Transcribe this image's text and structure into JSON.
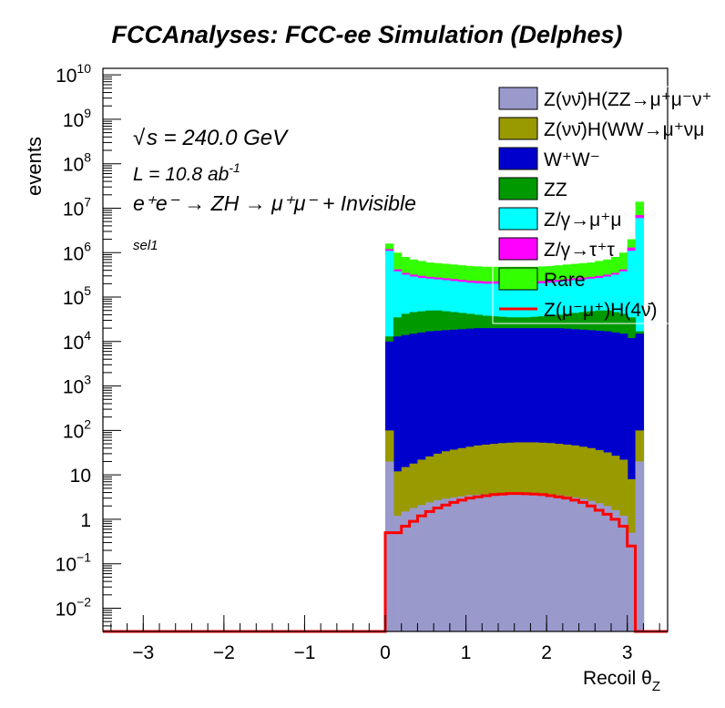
{
  "chart_data": {
    "type": "histogram-stacked",
    "title": "FCCAnalyses: FCC-ee Simulation (Delphes)",
    "xlabel_main": "Recoil θ",
    "xlabel_sub": "Z",
    "ylabel": "events",
    "xlim": [
      -3.5,
      3.5
    ],
    "ylog": true,
    "ylim": [
      0.003,
      14000000000
    ],
    "x_ticks": [
      {
        "v": -3,
        "label": "−3"
      },
      {
        "v": -2,
        "label": "−2"
      },
      {
        "v": -1,
        "label": "−1"
      },
      {
        "v": 0,
        "label": "0"
      },
      {
        "v": 1,
        "label": "1"
      },
      {
        "v": 2,
        "label": "2"
      },
      {
        "v": 3,
        "label": "3"
      }
    ],
    "y_ticks": [
      {
        "v": 0.01,
        "base": "10",
        "exp": "−2"
      },
      {
        "v": 0.1,
        "base": "10",
        "exp": "−1"
      },
      {
        "v": 1,
        "base": "1",
        "exp": ""
      },
      {
        "v": 10,
        "base": "10",
        "exp": ""
      },
      {
        "v": 100,
        "base": "10",
        "exp": "2"
      },
      {
        "v": 1000,
        "base": "10",
        "exp": "3"
      },
      {
        "v": 10000,
        "base": "10",
        "exp": "4"
      },
      {
        "v": 100000,
        "base": "10",
        "exp": "5"
      },
      {
        "v": 1000000,
        "base": "10",
        "exp": "6"
      },
      {
        "v": 10000000,
        "base": "10",
        "exp": "7"
      },
      {
        "v": 100000000,
        "base": "10",
        "exp": "8"
      },
      {
        "v": 1000000000,
        "base": "10",
        "exp": "9"
      },
      {
        "v": 10000000000,
        "base": "10",
        "exp": "10"
      }
    ],
    "bins": {
      "start": 0,
      "end": 3.2,
      "count": 32
    },
    "stack_totals": [
      {
        "name": "Z(νν̄)H(ZZ→μ⁺μ⁻νν̄)",
        "color": "#9999cc",
        "values": [
          20,
          1.2,
          1.5,
          1.8,
          2.1,
          2.4,
          2.7,
          2.9,
          3.1,
          3.3,
          3.5,
          3.6,
          3.7,
          3.8,
          3.85,
          3.9,
          3.9,
          3.85,
          3.8,
          3.7,
          3.6,
          3.5,
          3.3,
          3.1,
          2.9,
          2.6,
          2.3,
          2.0,
          1.6,
          1.2,
          0.5,
          20
        ]
      },
      {
        "name": "Z(νν̄)H(WW→μ⁺νμ⁻ν̄)",
        "color": "#999900",
        "values": [
          100,
          12,
          15,
          18,
          22,
          26,
          30,
          34,
          37,
          40,
          43,
          46,
          48,
          50,
          52,
          53,
          54,
          54,
          54,
          53,
          52,
          50,
          48,
          46,
          43,
          40,
          36,
          32,
          27,
          22,
          8,
          100
        ]
      },
      {
        "name": "W⁺W⁻",
        "color": "#0000cc",
        "values": [
          10000,
          13000,
          14000,
          15000,
          16000,
          17000,
          17500,
          18000,
          18500,
          19000,
          19500,
          20000,
          20000,
          20000,
          20000,
          20000,
          20000,
          20000,
          20000,
          20000,
          20000,
          20000,
          19500,
          19000,
          18500,
          18000,
          17500,
          17000,
          16000,
          15000,
          12000,
          15000
        ]
      },
      {
        "name": "ZZ",
        "color": "#009900",
        "values": [
          13000,
          35000,
          42000,
          46000,
          48000,
          50000,
          50000,
          48000,
          46000,
          44000,
          42000,
          40000,
          38000,
          37000,
          36000,
          35000,
          35000,
          35000,
          36000,
          37000,
          38000,
          40000,
          42000,
          44000,
          46000,
          48000,
          50000,
          50000,
          46000,
          42000,
          35000,
          17000
        ]
      },
      {
        "name": "Z/γ→μ⁺μ⁻",
        "color": "#00ffff",
        "values": [
          1100000,
          380000,
          320000,
          290000,
          270000,
          260000,
          250000,
          240000,
          230000,
          220000,
          210000,
          205000,
          200000,
          200000,
          200000,
          200000,
          200000,
          200000,
          200000,
          205000,
          210000,
          220000,
          230000,
          240000,
          250000,
          260000,
          270000,
          290000,
          320000,
          380000,
          1100000,
          6000000
        ]
      },
      {
        "name": "Z/γ→τ⁺τ⁻",
        "color": "#ff00ff",
        "values": [
          1200000,
          420000,
          350000,
          320000,
          300000,
          285000,
          275000,
          265000,
          255000,
          245000,
          235000,
          230000,
          225000,
          225000,
          225000,
          225000,
          225000,
          225000,
          225000,
          230000,
          235000,
          245000,
          255000,
          265000,
          275000,
          285000,
          300000,
          320000,
          350000,
          420000,
          1300000,
          7000000
        ]
      },
      {
        "name": "Rare",
        "color": "#33ff00",
        "values": [
          1600000,
          1000000,
          800000,
          700000,
          650000,
          600000,
          580000,
          560000,
          540000,
          520000,
          500000,
          490000,
          480000,
          480000,
          480000,
          480000,
          480000,
          480000,
          480000,
          490000,
          500000,
          520000,
          540000,
          560000,
          580000,
          600000,
          650000,
          700000,
          800000,
          1000000,
          2000000,
          14000000
        ]
      }
    ],
    "signal": {
      "name": "Z(μ⁻μ⁺)H(4ν)",
      "color": "#ff0000",
      "values": [
        0.5,
        0.5,
        0.7,
        0.9,
        1.2,
        1.5,
        1.8,
        2.1,
        2.4,
        2.7,
        3.0,
        3.2,
        3.4,
        3.6,
        3.7,
        3.8,
        3.8,
        3.75,
        3.7,
        3.6,
        3.4,
        3.2,
        3.0,
        2.7,
        2.4,
        2.0,
        1.6,
        1.3,
        1.0,
        0.7,
        0.25,
        0.003
      ]
    }
  },
  "legend": {
    "items": [
      {
        "label": "Z(νν̄)H(ZZ→μ⁺μ⁻ν⁺",
        "color": "#9999cc",
        "kind": "box"
      },
      {
        "label": "Z(νν̄)H(WW→μ⁺νμ",
        "color": "#999900",
        "kind": "box"
      },
      {
        "label": "W⁺W⁻",
        "color": "#0000cc",
        "kind": "box"
      },
      {
        "label": "ZZ",
        "color": "#009900",
        "kind": "box"
      },
      {
        "label": "Z/γ→μ⁺μ",
        "color": "#00ffff",
        "kind": "box"
      },
      {
        "label": "Z/γ→τ⁺τ",
        "color": "#ff00ff",
        "kind": "box"
      },
      {
        "label": "Rare",
        "color": "#33ff00",
        "kind": "box"
      },
      {
        "label": "Z(μ⁻μ⁺)H(4ν̄)",
        "color": "#ff0000",
        "kind": "line"
      }
    ]
  },
  "annotations": {
    "sqrt_s": "s = 240.0 GeV",
    "lumi": "L = 10.8 ab",
    "lumi_exp": "-1",
    "process": "e⁺e⁻ → ZH → μ⁺μ⁻ + Invisible",
    "selection": "sel1"
  }
}
